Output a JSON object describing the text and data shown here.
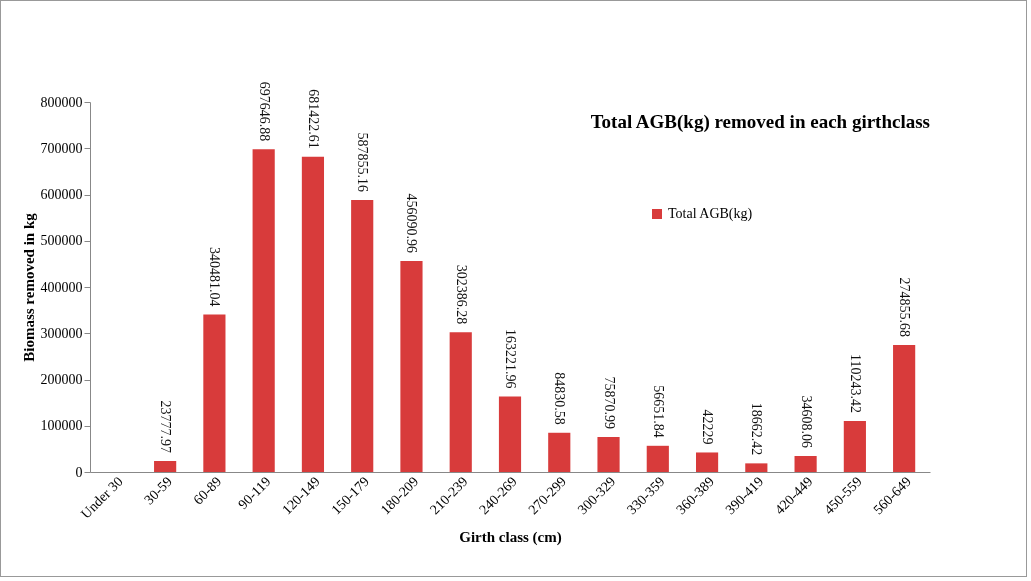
{
  "chart_data": {
    "type": "bar",
    "title": "Total AGB(kg) removed in each girthclass",
    "xlabel": "Girth class (cm)",
    "ylabel": "Biomass removed  in kg",
    "categories": [
      "Under 30",
      "30-59",
      "60-89",
      "90-119",
      "120-149",
      "150-179",
      "180-209",
      "210-239",
      "240-269",
      "270-299",
      "300-329",
      "330-359",
      "360-389",
      "390-419",
      "420-449",
      "450-559",
      "560-649"
    ],
    "series": [
      {
        "name": "Total AGB(kg)",
        "color": "#d83b3b",
        "values": [
          null,
          23777.97,
          340481.04,
          697646.88,
          681422.61,
          587855.16,
          456090.96,
          302386.28,
          163221.96,
          84830.58,
          75870.99,
          56651.84,
          42229,
          18662.42,
          34608.06,
          110243.42,
          274855.68
        ]
      }
    ],
    "ylim": [
      0,
      800000
    ],
    "yticks": [
      0,
      100000,
      200000,
      300000,
      400000,
      500000,
      600000,
      700000,
      800000
    ],
    "grid": false,
    "legend": "top right",
    "data_labels": true
  }
}
